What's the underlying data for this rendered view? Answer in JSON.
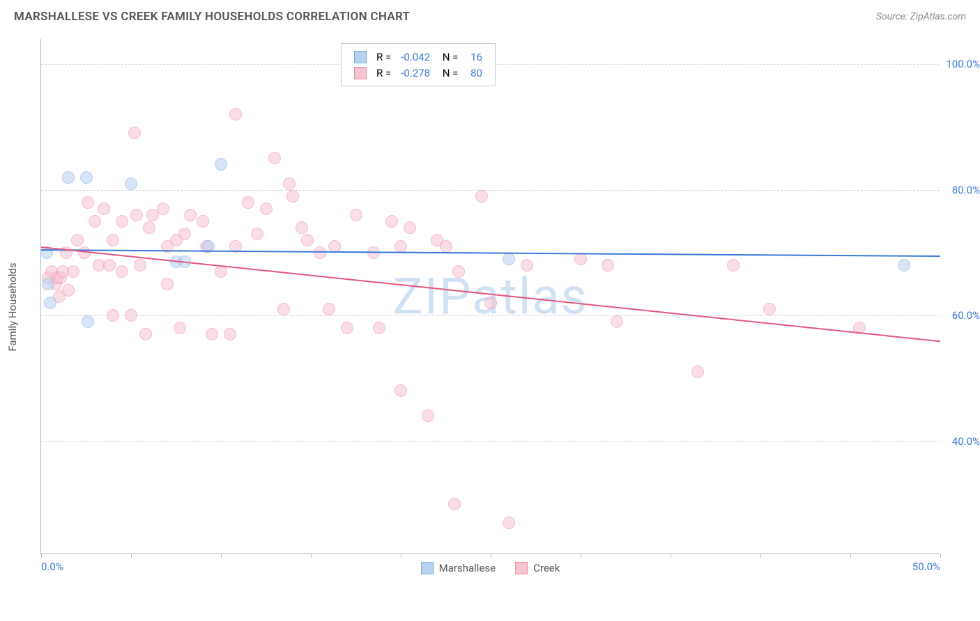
{
  "title": "MARSHALLESE VS CREEK FAMILY HOUSEHOLDS CORRELATION CHART",
  "source": "Source: ZipAtlas.com",
  "watermark": "ZIPatlas",
  "chart": {
    "type": "scatter",
    "ylabel": "Family Households",
    "xlim": [
      0,
      50
    ],
    "ylim": [
      22,
      104
    ],
    "xtick_label_min": "0.0%",
    "xtick_label_max": "50.0%",
    "xtick_positions": [
      0,
      5,
      10,
      15,
      20,
      25,
      30,
      35,
      40,
      45,
      50
    ],
    "ytick_gridlines": [
      40,
      60,
      80,
      100
    ],
    "ytick_labels": [
      "40.0%",
      "60.0%",
      "80.0%",
      "100.0%"
    ],
    "background_color": "#ffffff",
    "grid_color": "#d8d8d8",
    "axis_color": "#bbbbbb",
    "tick_label_color": "#3b78d8",
    "marker_radius": 9,
    "marker_opacity": 0.55,
    "series": [
      {
        "name": "Marshallese",
        "color_fill": "#b7d1f0",
        "color_stroke": "#7aa7dd",
        "R": "-0.042",
        "N": "16",
        "trend": {
          "x0": 0,
          "y0": 70.5,
          "x1": 50,
          "y1": 69.5,
          "color": "#3b78d8",
          "width": 2
        },
        "points": [
          {
            "x": 0.3,
            "y": 70
          },
          {
            "x": 0.4,
            "y": 65
          },
          {
            "x": 0.5,
            "y": 62
          },
          {
            "x": 1.5,
            "y": 82
          },
          {
            "x": 2.5,
            "y": 82
          },
          {
            "x": 2.6,
            "y": 59
          },
          {
            "x": 5.0,
            "y": 81
          },
          {
            "x": 7.5,
            "y": 68.5
          },
          {
            "x": 8.0,
            "y": 68.5
          },
          {
            "x": 9.3,
            "y": 71
          },
          {
            "x": 10.0,
            "y": 84
          },
          {
            "x": 26.0,
            "y": 69
          },
          {
            "x": 48.0,
            "y": 68
          }
        ]
      },
      {
        "name": "Creek",
        "color_fill": "#f6c4d1",
        "color_stroke": "#e98aa6",
        "R": "-0.278",
        "N": "80",
        "trend": {
          "x0": 0,
          "y0": 71,
          "x1": 50,
          "y1": 56,
          "color": "#e3577f",
          "width": 2
        },
        "points": [
          {
            "x": 0.4,
            "y": 66
          },
          {
            "x": 0.6,
            "y": 67
          },
          {
            "x": 0.8,
            "y": 65
          },
          {
            "x": 0.9,
            "y": 66
          },
          {
            "x": 1.0,
            "y": 63
          },
          {
            "x": 1.1,
            "y": 66
          },
          {
            "x": 1.2,
            "y": 67
          },
          {
            "x": 1.4,
            "y": 70
          },
          {
            "x": 1.5,
            "y": 64
          },
          {
            "x": 1.8,
            "y": 67
          },
          {
            "x": 2.0,
            "y": 72
          },
          {
            "x": 2.4,
            "y": 70
          },
          {
            "x": 2.6,
            "y": 78
          },
          {
            "x": 3.0,
            "y": 75
          },
          {
            "x": 3.2,
            "y": 68
          },
          {
            "x": 3.5,
            "y": 77
          },
          {
            "x": 3.8,
            "y": 68
          },
          {
            "x": 4.0,
            "y": 60
          },
          {
            "x": 4.0,
            "y": 72
          },
          {
            "x": 4.5,
            "y": 67
          },
          {
            "x": 4.5,
            "y": 75
          },
          {
            "x": 5.0,
            "y": 60
          },
          {
            "x": 5.2,
            "y": 89
          },
          {
            "x": 5.3,
            "y": 76
          },
          {
            "x": 5.5,
            "y": 68
          },
          {
            "x": 5.8,
            "y": 57
          },
          {
            "x": 6.0,
            "y": 74
          },
          {
            "x": 6.2,
            "y": 76
          },
          {
            "x": 6.8,
            "y": 77
          },
          {
            "x": 7.0,
            "y": 65
          },
          {
            "x": 7.0,
            "y": 71
          },
          {
            "x": 7.5,
            "y": 72
          },
          {
            "x": 7.7,
            "y": 58
          },
          {
            "x": 8.0,
            "y": 73
          },
          {
            "x": 8.3,
            "y": 76
          },
          {
            "x": 9.0,
            "y": 75
          },
          {
            "x": 9.2,
            "y": 71
          },
          {
            "x": 9.5,
            "y": 57
          },
          {
            "x": 10.0,
            "y": 67
          },
          {
            "x": 10.5,
            "y": 57
          },
          {
            "x": 10.8,
            "y": 92
          },
          {
            "x": 10.8,
            "y": 71
          },
          {
            "x": 11.5,
            "y": 78
          },
          {
            "x": 12.0,
            "y": 73
          },
          {
            "x": 12.5,
            "y": 77
          },
          {
            "x": 13.0,
            "y": 85
          },
          {
            "x": 13.5,
            "y": 61
          },
          {
            "x": 13.8,
            "y": 81
          },
          {
            "x": 14.0,
            "y": 79
          },
          {
            "x": 14.5,
            "y": 74
          },
          {
            "x": 14.8,
            "y": 72
          },
          {
            "x": 15.5,
            "y": 70
          },
          {
            "x": 16.0,
            "y": 61
          },
          {
            "x": 16.3,
            "y": 71
          },
          {
            "x": 17.0,
            "y": 58
          },
          {
            "x": 17.5,
            "y": 76
          },
          {
            "x": 18.5,
            "y": 70
          },
          {
            "x": 18.8,
            "y": 58
          },
          {
            "x": 19.5,
            "y": 75
          },
          {
            "x": 20.0,
            "y": 71
          },
          {
            "x": 20.0,
            "y": 48
          },
          {
            "x": 20.5,
            "y": 74
          },
          {
            "x": 21.5,
            "y": 44
          },
          {
            "x": 22.0,
            "y": 72
          },
          {
            "x": 22.5,
            "y": 71
          },
          {
            "x": 23.0,
            "y": 30
          },
          {
            "x": 23.2,
            "y": 67
          },
          {
            "x": 24.5,
            "y": 79
          },
          {
            "x": 25.0,
            "y": 62
          },
          {
            "x": 26.0,
            "y": 27
          },
          {
            "x": 27.0,
            "y": 68
          },
          {
            "x": 30.0,
            "y": 69
          },
          {
            "x": 31.5,
            "y": 68
          },
          {
            "x": 32.0,
            "y": 59
          },
          {
            "x": 36.5,
            "y": 51
          },
          {
            "x": 38.5,
            "y": 68
          },
          {
            "x": 40.5,
            "y": 61
          },
          {
            "x": 45.5,
            "y": 58
          }
        ]
      }
    ],
    "legend_top": {
      "R_label": "R =",
      "N_label": "N ="
    },
    "legend_bottom": [
      {
        "name": "Marshallese",
        "fill": "#b7d1f0",
        "stroke": "#7aa7dd"
      },
      {
        "name": "Creek",
        "fill": "#f6c4d1",
        "stroke": "#e98aa6"
      }
    ]
  }
}
